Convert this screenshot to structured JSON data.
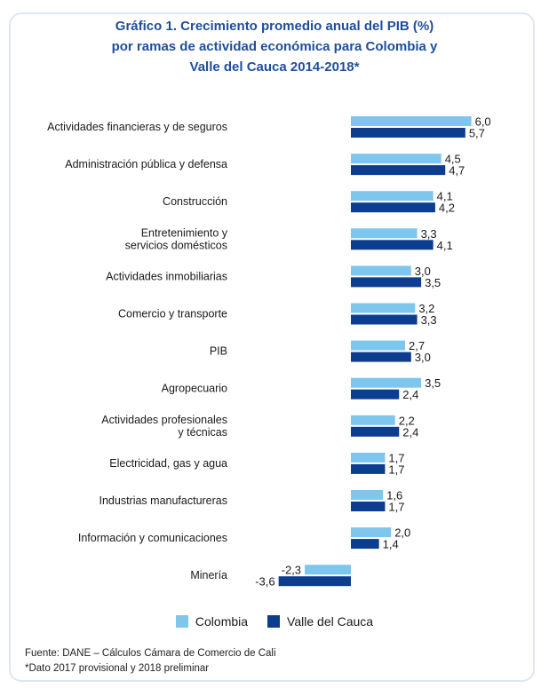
{
  "title_lines": [
    "Gráfico 1. Crecimiento promedio anual del PIB (%)",
    "por ramas de actividad económica para Colombia y",
    "Valle del Cauca 2014-2018*"
  ],
  "legend": {
    "colombia": "Colombia",
    "valle": "Valle del Cauca"
  },
  "colors": {
    "colombia": "#7fc6ee",
    "valle": "#0d3d8f",
    "title": "#1f4e9c"
  },
  "footer": {
    "source": "Fuente: DANE – Cálculos Cámara de Comercio de Cali",
    "note": "*Dato 2017 provisional y 2018 preliminar"
  },
  "chart_data": {
    "type": "bar",
    "orientation": "horizontal",
    "title": "Gráfico 1. Crecimiento promedio anual del PIB (%) por ramas de actividad económica para Colombia y Valle del Cauca 2014-2018*",
    "categories": [
      [
        "Actividades financieras y de seguros"
      ],
      [
        "Administración pública y defensa"
      ],
      [
        "Construcción"
      ],
      [
        "Entretenimiento y",
        "servicios domésticos"
      ],
      [
        "Actividades inmobiliarias"
      ],
      [
        "Comercio y transporte"
      ],
      [
        "PIB"
      ],
      [
        "Agropecuario"
      ],
      [
        "Actividades profesionales",
        "y técnicas"
      ],
      [
        "Electricidad, gas y agua"
      ],
      [
        "Industrias manufactureras"
      ],
      [
        "Información y comunicaciones"
      ],
      [
        "Minería"
      ]
    ],
    "series": [
      {
        "name": "Colombia",
        "values": [
          6.0,
          4.5,
          4.1,
          3.3,
          3.0,
          3.2,
          2.7,
          3.5,
          2.2,
          1.7,
          1.6,
          2.0,
          -2.3
        ],
        "labels": [
          "6,0",
          "4,5",
          "4,1",
          "3,3",
          "3,0",
          "3,2",
          "2,7",
          "3,5",
          "2,2",
          "1,7",
          "1,6",
          "2,0",
          "-2,3"
        ]
      },
      {
        "name": "Valle del Cauca",
        "values": [
          5.7,
          4.7,
          4.2,
          4.1,
          3.5,
          3.3,
          3.0,
          2.4,
          2.4,
          1.7,
          1.7,
          1.4,
          -3.6
        ],
        "labels": [
          "5,7",
          "4,7",
          "4,2",
          "4,1",
          "3,5",
          "3,3",
          "3,0",
          "2,4",
          "2,4",
          "1,7",
          "1,7",
          "1,4",
          "-3,6"
        ]
      }
    ],
    "xlim": [
      -3.6,
      6.0
    ],
    "grid": false,
    "legend_position": "bottom"
  }
}
